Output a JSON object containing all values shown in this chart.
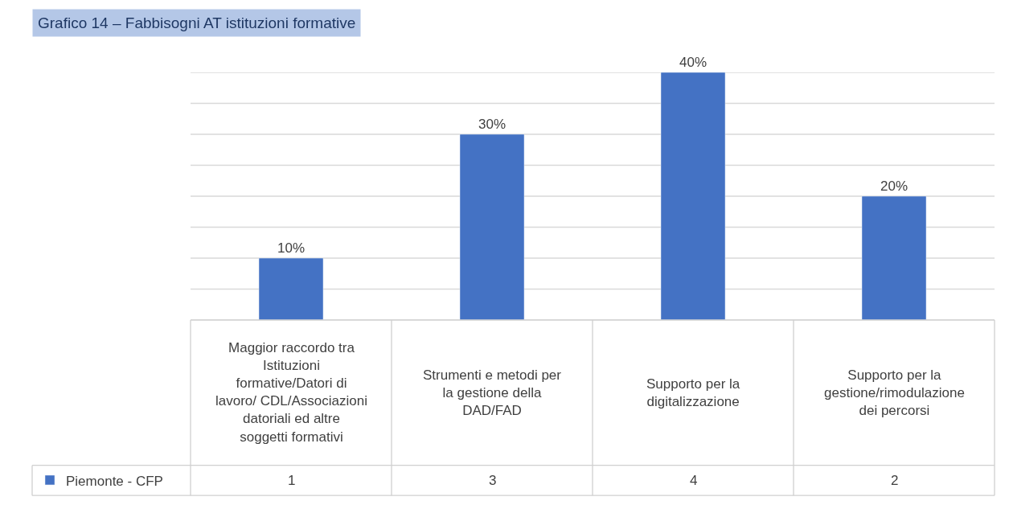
{
  "chart_data": {
    "type": "bar",
    "title": "Grafico 14 – Fabbisogni AT istituzioni formative",
    "categories": [
      "Maggior raccordo tra Istituzioni formative/Datori di lavoro/ CDL/Associazioni datoriali ed altre soggetti formativi",
      "Strumenti e metodi per la gestione della DAD/FAD",
      "Supporto per la digitalizzazione",
      "Supporto per la gestione/rimodulazione dei percorsi"
    ],
    "series": [
      {
        "name": "Piemonte - CFP",
        "color": "#4472c4",
        "values": [
          10,
          30,
          40,
          20
        ],
        "value_labels": [
          "10%",
          "30%",
          "40%",
          "20%"
        ]
      }
    ],
    "annotations": [
      "1",
      "3",
      "4",
      "2"
    ],
    "ylim": [
      0,
      40
    ],
    "yticks": [
      {
        "value": 0,
        "label": null
      },
      {
        "value": 5,
        "label": null
      },
      {
        "value": 10,
        "label": null
      },
      {
        "value": 15,
        "label": null
      },
      {
        "value": 20,
        "label": null
      },
      {
        "value": 25,
        "label": null
      },
      {
        "value": 30,
        "label": null
      },
      {
        "value": 35,
        "label": null
      },
      {
        "value": 40,
        "label": null
      }
    ],
    "tick_labels": "x",
    "grid": "y",
    "legend": "bottom left"
  }
}
